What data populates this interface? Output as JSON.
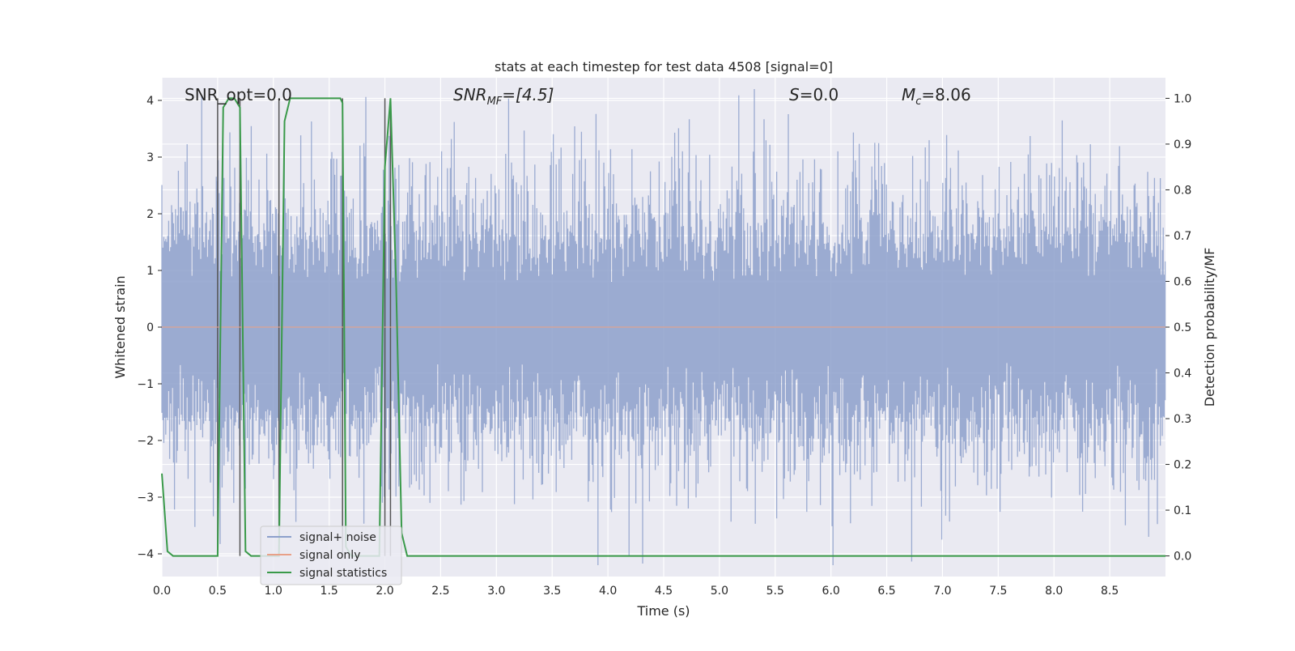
{
  "chart_data": {
    "type": "line",
    "title": "stats at each timestep for test data 4508 [signal=0]",
    "xlabel": "Time (s)",
    "ylabel_left": "Whitened strain",
    "ylabel_right": "Detection probability/MF",
    "xlim": [
      0.0,
      9.0
    ],
    "ylim_left": [
      -4.4,
      4.4
    ],
    "ylim_right": [
      -0.045,
      1.045
    ],
    "x_ticks": [
      "0.0",
      "0.5",
      "1.0",
      "1.5",
      "2.0",
      "2.5",
      "3.0",
      "3.5",
      "4.0",
      "4.5",
      "5.0",
      "5.5",
      "6.0",
      "6.5",
      "7.0",
      "7.5",
      "8.0",
      "8.5"
    ],
    "y_ticks_left": [
      "4",
      "3",
      "2",
      "1",
      "0",
      "−1",
      "−2",
      "−3",
      "−4"
    ],
    "y_ticks_right": [
      "1.0",
      "0.9",
      "0.8",
      "0.7",
      "0.6",
      "0.5",
      "0.4",
      "0.3",
      "0.2",
      "0.1",
      "0.0"
    ],
    "grid": true,
    "legend_placement": "lower-left",
    "annotations": {
      "snr_opt": "SNR_opt=0.0",
      "snr_mf_main": "SNR",
      "snr_mf_sub": "MF",
      "snr_mf_rest": "=[4.5]",
      "s_main": "S",
      "s_rest": "=0.0",
      "mc_main": "M",
      "mc_sub": "c",
      "mc_rest": "=8.06"
    },
    "series": [
      {
        "name": "signal+ noise",
        "color": "#8da0cb",
        "axis": "left",
        "description_hint": "dense whitened strain noise, roughly uniform amplitude ±2 with peaks to ±3.8 over 0–9 s"
      },
      {
        "name": "signal only",
        "color": "#e8a088",
        "axis": "left",
        "x": [
          0.0,
          9.0
        ],
        "y": [
          0.0,
          0.0
        ]
      },
      {
        "name": "signal statistics",
        "color": "#3a9a4a",
        "axis": "right",
        "x": [
          0.0,
          0.05,
          0.1,
          0.15,
          0.45,
          0.5,
          0.55,
          0.6,
          0.65,
          0.7,
          0.75,
          0.8,
          0.85,
          1.0,
          1.05,
          1.1,
          1.15,
          1.2,
          1.25,
          1.3,
          1.6,
          1.62,
          1.65,
          1.7,
          1.75,
          1.95,
          2.0,
          2.05,
          2.1,
          2.15,
          2.2,
          9.0
        ],
        "y": [
          0.18,
          0.01,
          0.0,
          0.0,
          0.0,
          0.0,
          0.98,
          1.0,
          1.0,
          0.98,
          0.01,
          0.0,
          0.0,
          0.0,
          0.0,
          0.95,
          1.0,
          1.0,
          1.0,
          1.0,
          1.0,
          0.99,
          0.02,
          0.0,
          0.0,
          0.0,
          0.85,
          1.0,
          0.6,
          0.05,
          0.0,
          0.0
        ]
      }
    ],
    "marker_lines": {
      "color": "#555555",
      "x": [
        0.5,
        0.7,
        1.05,
        1.62,
        2.0,
        2.05
      ]
    }
  }
}
